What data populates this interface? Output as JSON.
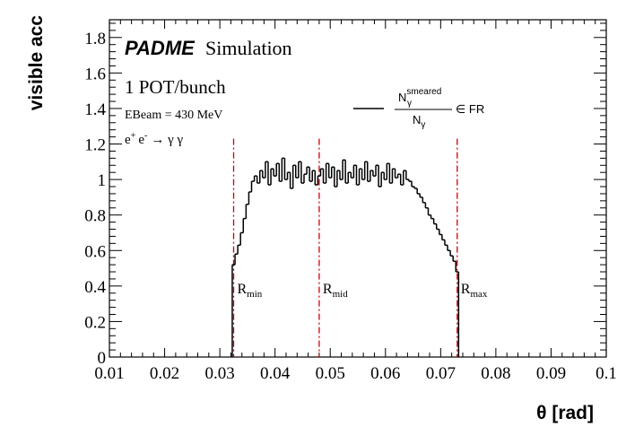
{
  "chart_data": {
    "type": "line",
    "title": "",
    "xlabel": "θ [rad]",
    "ylabel": "visible acc",
    "xlim": [
      0.01,
      0.1
    ],
    "ylim": [
      0,
      1.9
    ],
    "xticks": [
      "0.01",
      "0.02",
      "0.03",
      "0.04",
      "0.05",
      "0.06",
      "0.07",
      "0.08",
      "0.09",
      "0.1"
    ],
    "yticks": [
      "0",
      "0.2",
      "0.4",
      "0.6",
      "0.8",
      "1",
      "1.2",
      "1.4",
      "1.6",
      "1.8"
    ],
    "grid": false,
    "series": [
      {
        "name": "N_γ^smeared / N_γ ∈ FR",
        "style": "step",
        "color": "#000000",
        "x": [
          0.0325,
          0.033,
          0.0335,
          0.034,
          0.0345,
          0.035,
          0.0355,
          0.036,
          0.0365,
          0.037,
          0.0375,
          0.038,
          0.0385,
          0.039,
          0.0395,
          0.04,
          0.0405,
          0.041,
          0.0415,
          0.042,
          0.0425,
          0.043,
          0.0435,
          0.044,
          0.0445,
          0.045,
          0.0455,
          0.046,
          0.0465,
          0.047,
          0.0475,
          0.048,
          0.0485,
          0.049,
          0.0495,
          0.05,
          0.0505,
          0.051,
          0.0515,
          0.052,
          0.0525,
          0.053,
          0.0535,
          0.054,
          0.0545,
          0.055,
          0.0555,
          0.056,
          0.0565,
          0.057,
          0.0575,
          0.058,
          0.0585,
          0.059,
          0.0595,
          0.06,
          0.0605,
          0.061,
          0.0615,
          0.062,
          0.0625,
          0.063,
          0.0635,
          0.064,
          0.0645,
          0.065,
          0.0655,
          0.066,
          0.0665,
          0.067,
          0.0675,
          0.068,
          0.0685,
          0.069,
          0.0695,
          0.07,
          0.0705,
          0.071,
          0.0715,
          0.072,
          0.0725,
          0.073
        ],
        "y": [
          0.52,
          0.58,
          0.63,
          0.7,
          0.78,
          0.86,
          0.93,
          0.99,
          1.02,
          0.98,
          1.05,
          1.01,
          1.1,
          0.97,
          1.06,
          1.02,
          1.09,
          0.99,
          1.12,
          1.0,
          1.04,
          0.95,
          1.08,
          1.01,
          1.1,
          0.98,
          1.03,
          1.07,
          0.99,
          1.05,
          0.97,
          1.02,
          1.06,
          0.98,
          1.09,
          1.01,
          1.07,
          0.96,
          1.05,
          1.0,
          1.11,
          0.98,
          1.04,
          1.01,
          1.08,
          0.97,
          1.06,
          1.0,
          1.1,
          0.99,
          1.05,
          1.02,
          1.08,
          0.96,
          1.04,
          1.0,
          1.09,
          0.98,
          1.06,
          1.01,
          1.03,
          0.97,
          1.05,
          1.0,
          0.99,
          0.96,
          0.95,
          0.92,
          0.9,
          0.87,
          0.84,
          0.8,
          0.78,
          0.75,
          0.72,
          0.69,
          0.66,
          0.63,
          0.6,
          0.57,
          0.54,
          0.48
        ]
      }
    ],
    "vlines": [
      {
        "x": 0.0325,
        "label_main": "R",
        "label_sub": "min"
      },
      {
        "x": 0.048,
        "label_main": "R",
        "label_sub": "mid"
      },
      {
        "x": 0.073,
        "label_main": "R",
        "label_sub": "max"
      }
    ],
    "vline_color": "#cc0000",
    "annotations": {
      "brand": "PADME",
      "brand_suffix": "Simulation",
      "pot": "1 POT/bunch",
      "ebeam": "EBeam = 430 MeV",
      "process_e": "e",
      "process_plus": "+",
      "process_minus": "-",
      "process_arrow": "→ γ γ"
    },
    "legend": {
      "placement": "top-right",
      "num_main": "N",
      "num_sub": "γ",
      "num_sup": "smeared",
      "den_main": "N",
      "den_sub": "γ",
      "suffix": "∈ FR"
    }
  }
}
